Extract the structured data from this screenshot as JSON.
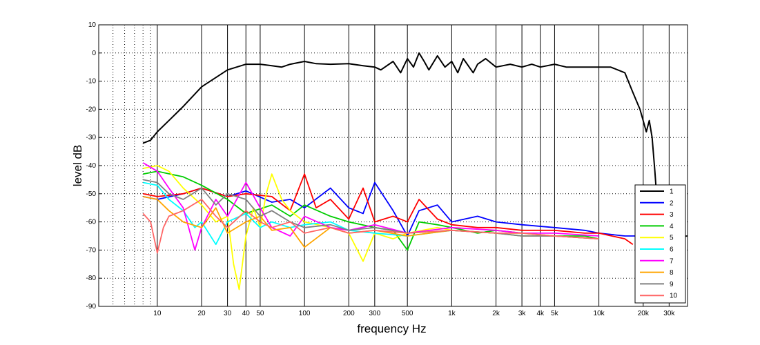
{
  "chart_data": {
    "type": "line",
    "xlabel": "frequency   Hz",
    "ylabel": "level dB",
    "x_scale": "log",
    "xlim": [
      4,
      40000
    ],
    "ylim": [
      -90,
      10
    ],
    "grid": true,
    "legend_position": "bottom-right",
    "x_tick_labels": [
      {
        "value": 10,
        "label": "10"
      },
      {
        "value": 20,
        "label": "20"
      },
      {
        "value": 30,
        "label": "30"
      },
      {
        "value": 40,
        "label": "40"
      },
      {
        "value": 50,
        "label": "50"
      },
      {
        "value": 100,
        "label": "100"
      },
      {
        "value": 200,
        "label": "200"
      },
      {
        "value": 300,
        "label": "300"
      },
      {
        "value": 500,
        "label": "500"
      },
      {
        "value": 1000,
        "label": "1k"
      },
      {
        "value": 2000,
        "label": "2k"
      },
      {
        "value": 3000,
        "label": "3k"
      },
      {
        "value": 4000,
        "label": "4k"
      },
      {
        "value": 5000,
        "label": "5k"
      },
      {
        "value": 10000,
        "label": "10k"
      },
      {
        "value": 20000,
        "label": "20k"
      },
      {
        "value": 30000,
        "label": "30k"
      }
    ],
    "x_minor_gridlines": [
      5,
      6,
      7,
      8,
      9
    ],
    "y_ticks": [
      10,
      0,
      -10,
      -20,
      -30,
      -40,
      -50,
      -60,
      -70,
      -80,
      -90
    ],
    "series": [
      {
        "name": "1",
        "color": "#000000",
        "points": [
          [
            8,
            -32
          ],
          [
            9,
            -31
          ],
          [
            10,
            -28
          ],
          [
            12,
            -24
          ],
          [
            15,
            -19
          ],
          [
            20,
            -12
          ],
          [
            30,
            -6
          ],
          [
            40,
            -4
          ],
          [
            50,
            -4
          ],
          [
            60,
            -4.5
          ],
          [
            70,
            -5
          ],
          [
            80,
            -4
          ],
          [
            100,
            -3
          ],
          [
            120,
            -3.8
          ],
          [
            150,
            -4
          ],
          [
            200,
            -3.8
          ],
          [
            250,
            -4.5
          ],
          [
            300,
            -5
          ],
          [
            330,
            -6
          ],
          [
            400,
            -3
          ],
          [
            450,
            -7
          ],
          [
            500,
            -2
          ],
          [
            550,
            -5
          ],
          [
            600,
            0
          ],
          [
            650,
            -3
          ],
          [
            700,
            -6
          ],
          [
            800,
            -1
          ],
          [
            900,
            -5
          ],
          [
            1000,
            -3
          ],
          [
            1100,
            -7
          ],
          [
            1200,
            -2
          ],
          [
            1400,
            -7
          ],
          [
            1500,
            -4
          ],
          [
            1700,
            -2
          ],
          [
            2000,
            -5
          ],
          [
            2500,
            -4
          ],
          [
            3000,
            -5
          ],
          [
            3500,
            -4
          ],
          [
            4000,
            -5
          ],
          [
            5000,
            -4
          ],
          [
            6000,
            -5
          ],
          [
            8000,
            -5
          ],
          [
            10000,
            -5
          ],
          [
            12000,
            -5
          ],
          [
            15000,
            -7
          ],
          [
            17000,
            -14
          ],
          [
            19000,
            -20
          ],
          [
            21000,
            -28
          ],
          [
            22000,
            -24
          ],
          [
            23000,
            -30
          ],
          [
            24000,
            -42
          ],
          [
            25000,
            -55
          ],
          [
            26000,
            -66
          ],
          [
            40000,
            -65
          ]
        ]
      },
      {
        "name": "2",
        "color": "#0000ff",
        "points": [
          [
            8,
            -51
          ],
          [
            10,
            -52
          ],
          [
            15,
            -50
          ],
          [
            20,
            -48
          ],
          [
            30,
            -51
          ],
          [
            40,
            -49
          ],
          [
            60,
            -53
          ],
          [
            80,
            -52
          ],
          [
            100,
            -55
          ],
          [
            150,
            -48
          ],
          [
            200,
            -55
          ],
          [
            250,
            -57
          ],
          [
            300,
            -46
          ],
          [
            400,
            -56
          ],
          [
            500,
            -65
          ],
          [
            600,
            -56
          ],
          [
            800,
            -54
          ],
          [
            1000,
            -60
          ],
          [
            1500,
            -58
          ],
          [
            2000,
            -60
          ],
          [
            3000,
            -61
          ],
          [
            5000,
            -62
          ],
          [
            8000,
            -63
          ],
          [
            10000,
            -64
          ],
          [
            15000,
            -65
          ],
          [
            20000,
            -65
          ]
        ]
      },
      {
        "name": "3",
        "color": "#ff0000",
        "points": [
          [
            8,
            -50
          ],
          [
            10,
            -51
          ],
          [
            15,
            -50
          ],
          [
            20,
            -48
          ],
          [
            30,
            -51
          ],
          [
            40,
            -50
          ],
          [
            60,
            -51
          ],
          [
            80,
            -56
          ],
          [
            100,
            -43
          ],
          [
            120,
            -55
          ],
          [
            150,
            -52
          ],
          [
            200,
            -59
          ],
          [
            250,
            -48
          ],
          [
            300,
            -60
          ],
          [
            400,
            -58
          ],
          [
            500,
            -60
          ],
          [
            600,
            -52
          ],
          [
            800,
            -59
          ],
          [
            1000,
            -61
          ],
          [
            1500,
            -62
          ],
          [
            2000,
            -62
          ],
          [
            3000,
            -63
          ],
          [
            5000,
            -63
          ],
          [
            8000,
            -64
          ],
          [
            10000,
            -64
          ],
          [
            15000,
            -66
          ],
          [
            17000,
            -68
          ]
        ]
      },
      {
        "name": "4",
        "color": "#00cc00",
        "points": [
          [
            8,
            -43
          ],
          [
            10,
            -42
          ],
          [
            15,
            -44
          ],
          [
            20,
            -47
          ],
          [
            30,
            -52
          ],
          [
            40,
            -57
          ],
          [
            60,
            -54
          ],
          [
            80,
            -58
          ],
          [
            100,
            -54
          ],
          [
            150,
            -58
          ],
          [
            200,
            -60
          ],
          [
            300,
            -62
          ],
          [
            400,
            -63
          ],
          [
            500,
            -70
          ],
          [
            600,
            -60
          ],
          [
            800,
            -61
          ],
          [
            1000,
            -62
          ],
          [
            1500,
            -64
          ],
          [
            2000,
            -63
          ],
          [
            3000,
            -64
          ],
          [
            5000,
            -65
          ],
          [
            8000,
            -65
          ],
          [
            10000,
            -66
          ]
        ]
      },
      {
        "name": "5",
        "color": "#ffff00",
        "points": [
          [
            8,
            -41
          ],
          [
            10,
            -40
          ],
          [
            12,
            -42
          ],
          [
            15,
            -48
          ],
          [
            20,
            -54
          ],
          [
            25,
            -60
          ],
          [
            30,
            -58
          ],
          [
            33,
            -75
          ],
          [
            36,
            -84
          ],
          [
            40,
            -65
          ],
          [
            45,
            -55
          ],
          [
            50,
            -62
          ],
          [
            55,
            -50
          ],
          [
            60,
            -43
          ],
          [
            70,
            -52
          ],
          [
            80,
            -56
          ],
          [
            100,
            -60
          ],
          [
            150,
            -62
          ],
          [
            200,
            -64
          ],
          [
            250,
            -74
          ],
          [
            300,
            -64
          ],
          [
            400,
            -66
          ],
          [
            500,
            -64
          ],
          [
            800,
            -62
          ],
          [
            1000,
            -63
          ],
          [
            2000,
            -64
          ],
          [
            3000,
            -64
          ],
          [
            5000,
            -65
          ],
          [
            10000,
            -66
          ]
        ]
      },
      {
        "name": "6",
        "color": "#00ffff",
        "points": [
          [
            8,
            -46
          ],
          [
            10,
            -47
          ],
          [
            12,
            -52
          ],
          [
            15,
            -56
          ],
          [
            18,
            -62
          ],
          [
            20,
            -60
          ],
          [
            25,
            -68
          ],
          [
            30,
            -60
          ],
          [
            40,
            -57
          ],
          [
            50,
            -62
          ],
          [
            60,
            -60
          ],
          [
            80,
            -62
          ],
          [
            100,
            -61
          ],
          [
            150,
            -60
          ],
          [
            200,
            -63
          ],
          [
            300,
            -64
          ],
          [
            500,
            -65
          ],
          [
            1000,
            -63
          ],
          [
            2000,
            -64
          ],
          [
            3000,
            -65
          ],
          [
            5000,
            -65
          ],
          [
            10000,
            -66
          ]
        ]
      },
      {
        "name": "7",
        "color": "#ff00ff",
        "points": [
          [
            8,
            -39
          ],
          [
            10,
            -42
          ],
          [
            12,
            -48
          ],
          [
            15,
            -55
          ],
          [
            18,
            -70
          ],
          [
            20,
            -62
          ],
          [
            25,
            -52
          ],
          [
            30,
            -58
          ],
          [
            40,
            -46
          ],
          [
            50,
            -55
          ],
          [
            60,
            -62
          ],
          [
            80,
            -65
          ],
          [
            100,
            -58
          ],
          [
            150,
            -62
          ],
          [
            200,
            -63
          ],
          [
            300,
            -61
          ],
          [
            500,
            -64
          ],
          [
            1000,
            -62
          ],
          [
            2000,
            -63
          ],
          [
            3000,
            -64
          ],
          [
            5000,
            -64
          ],
          [
            10000,
            -65
          ]
        ]
      },
      {
        "name": "8",
        "color": "#ffa500",
        "points": [
          [
            8,
            -51
          ],
          [
            10,
            -52
          ],
          [
            12,
            -56
          ],
          [
            15,
            -60
          ],
          [
            20,
            -62
          ],
          [
            25,
            -55
          ],
          [
            30,
            -64
          ],
          [
            40,
            -60
          ],
          [
            50,
            -58
          ],
          [
            60,
            -63
          ],
          [
            80,
            -62
          ],
          [
            100,
            -69
          ],
          [
            150,
            -62
          ],
          [
            200,
            -64
          ],
          [
            300,
            -63
          ],
          [
            500,
            -65
          ],
          [
            1000,
            -63
          ],
          [
            2000,
            -64
          ],
          [
            3000,
            -65
          ],
          [
            5000,
            -65
          ],
          [
            10000,
            -66
          ]
        ]
      },
      {
        "name": "9",
        "color": "#808080",
        "points": [
          [
            8,
            -45
          ],
          [
            10,
            -46
          ],
          [
            12,
            -50
          ],
          [
            15,
            -52
          ],
          [
            20,
            -48
          ],
          [
            25,
            -54
          ],
          [
            30,
            -50
          ],
          [
            40,
            -52
          ],
          [
            50,
            -58
          ],
          [
            60,
            -56
          ],
          [
            80,
            -60
          ],
          [
            100,
            -62
          ],
          [
            150,
            -61
          ],
          [
            200,
            -63
          ],
          [
            300,
            -62
          ],
          [
            500,
            -64
          ],
          [
            1000,
            -63
          ],
          [
            2000,
            -64
          ],
          [
            3000,
            -65
          ],
          [
            5000,
            -65
          ],
          [
            10000,
            -66
          ]
        ]
      },
      {
        "name": "10",
        "color": "#ff6666",
        "points": [
          [
            8,
            -57
          ],
          [
            9,
            -60
          ],
          [
            10,
            -71
          ],
          [
            11,
            -62
          ],
          [
            12,
            -58
          ],
          [
            15,
            -56
          ],
          [
            20,
            -52
          ],
          [
            25,
            -58
          ],
          [
            30,
            -62
          ],
          [
            40,
            -56
          ],
          [
            50,
            -60
          ],
          [
            60,
            -62
          ],
          [
            80,
            -60
          ],
          [
            100,
            -64
          ],
          [
            150,
            -62
          ],
          [
            200,
            -64
          ],
          [
            300,
            -63
          ],
          [
            500,
            -64
          ],
          [
            1000,
            -63
          ],
          [
            2000,
            -64
          ],
          [
            3000,
            -64
          ],
          [
            5000,
            -65
          ],
          [
            10000,
            -66
          ]
        ]
      }
    ]
  }
}
